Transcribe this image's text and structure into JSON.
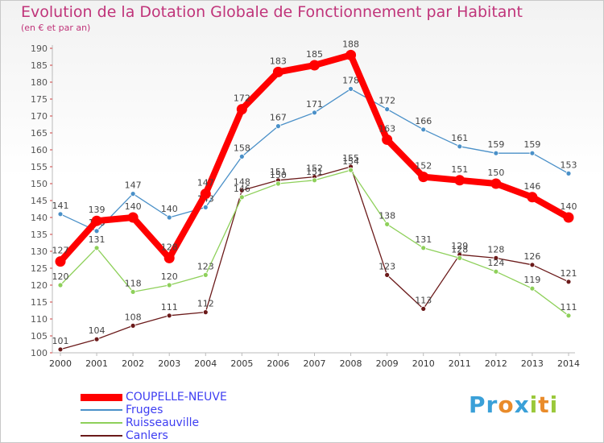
{
  "header": {
    "title": "Evolution de la Dotation Globale de Fonctionnement par Habitant",
    "subtitle": "(en € et par an)"
  },
  "branding": {
    "logo_text": "Proxiti"
  },
  "chart_data": {
    "type": "line",
    "title": "Evolution de la Dotation Globale de Fonctionnement par Habitant",
    "subtitle": "(en € et par an)",
    "xlabel": "",
    "ylabel": "",
    "ylim": [
      100,
      190
    ],
    "ytick_step": 5,
    "legend_position": "bottom-left",
    "grid": false,
    "x": [
      "2000",
      "2001",
      "2002",
      "2003",
      "2004",
      "2005",
      "2006",
      "2007",
      "2008",
      "2009",
      "2010",
      "2011",
      "2012",
      "2013",
      "2014"
    ],
    "series": [
      {
        "name": "COUPELLE-NEUVE",
        "color": "#ff0000",
        "values": [
          127,
          139,
          140,
          128,
          147,
          172,
          183,
          185,
          188,
          163,
          152,
          151,
          150,
          146,
          140
        ]
      },
      {
        "name": "Fruges",
        "color": "#4a90c8",
        "values": [
          141,
          136,
          147,
          140,
          143,
          158,
          167,
          171,
          178,
          172,
          166,
          161,
          159,
          159,
          153
        ]
      },
      {
        "name": "Ruisseauville",
        "color": "#8ed05a",
        "values": [
          120,
          131,
          118,
          120,
          123,
          146,
          150,
          151,
          154,
          138,
          131,
          128,
          124,
          119,
          111
        ]
      },
      {
        "name": "Canlers",
        "color": "#6b1a1a",
        "values": [
          101,
          104,
          108,
          111,
          112,
          148,
          151,
          152,
          155,
          123,
          113,
          129,
          128,
          126,
          121
        ]
      }
    ]
  }
}
